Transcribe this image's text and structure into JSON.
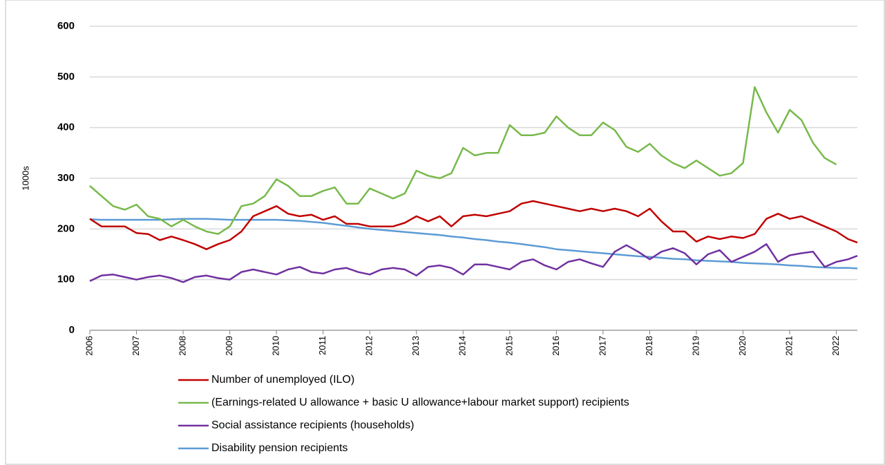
{
  "chart_data": {
    "type": "line",
    "y_label": "1000s",
    "x": [
      2006,
      2006.25,
      2006.5,
      2006.75,
      2007,
      2007.25,
      2007.5,
      2007.75,
      2008,
      2008.25,
      2008.5,
      2008.75,
      2009,
      2009.25,
      2009.5,
      2009.75,
      2010,
      2010.25,
      2010.5,
      2010.75,
      2011,
      2011.25,
      2011.5,
      2011.75,
      2012,
      2012.25,
      2012.5,
      2012.75,
      2013,
      2013.25,
      2013.5,
      2013.75,
      2014,
      2014.25,
      2014.5,
      2014.75,
      2015,
      2015.25,
      2015.5,
      2015.75,
      2016,
      2016.25,
      2016.5,
      2016.75,
      2017,
      2017.25,
      2017.5,
      2017.75,
      2018,
      2018.25,
      2018.5,
      2018.75,
      2019,
      2019.25,
      2019.5,
      2019.75,
      2020,
      2020.25,
      2020.5,
      2020.75,
      2021,
      2021.25,
      2021.5,
      2021.75,
      2022,
      2022.25,
      2022.45
    ],
    "series": [
      {
        "name": "Number of unemployed (ILO)",
        "color": "#c00000",
        "values": [
          220,
          205,
          205,
          205,
          192,
          190,
          178,
          185,
          178,
          170,
          160,
          170,
          178,
          195,
          225,
          235,
          245,
          230,
          225,
          228,
          218,
          225,
          210,
          210,
          205,
          205,
          205,
          212,
          225,
          215,
          225,
          205,
          225,
          228,
          225,
          230,
          235,
          250,
          255,
          250,
          245,
          240,
          235,
          240,
          235,
          240,
          235,
          225,
          240,
          215,
          195,
          195,
          175,
          185,
          180,
          185,
          182,
          190,
          220,
          230,
          220,
          225,
          215,
          205,
          195,
          180,
          173
        ]
      },
      {
        "name": "(Earnings-related U allowance + basic U allowance+labour market support) recipients",
        "color": "#77b94a",
        "values": [
          285,
          265,
          245,
          238,
          248,
          225,
          220,
          205,
          218,
          205,
          195,
          190,
          205,
          245,
          250,
          265,
          298,
          285,
          265,
          265,
          275,
          282,
          250,
          250,
          280,
          270,
          260,
          270,
          315,
          305,
          300,
          310,
          360,
          345,
          350,
          350,
          405,
          385,
          385,
          390,
          422,
          400,
          385,
          385,
          410,
          395,
          362,
          352,
          368,
          345,
          330,
          320,
          335,
          320,
          305,
          310,
          330,
          480,
          430,
          390,
          435,
          415,
          370,
          340,
          327,
          null,
          null
        ]
      },
      {
        "name": "Social assistance recipients (households)",
        "color": "#7030a0",
        "values": [
          97,
          108,
          110,
          105,
          100,
          105,
          108,
          103,
          95,
          105,
          108,
          103,
          100,
          115,
          120,
          115,
          110,
          120,
          125,
          115,
          112,
          120,
          123,
          115,
          110,
          120,
          123,
          120,
          108,
          125,
          128,
          123,
          110,
          130,
          130,
          125,
          120,
          135,
          140,
          128,
          120,
          135,
          140,
          132,
          125,
          155,
          168,
          155,
          140,
          155,
          162,
          152,
          130,
          150,
          158,
          135,
          145,
          155,
          170,
          135,
          148,
          152,
          155,
          125,
          135,
          140,
          147
        ]
      },
      {
        "name": "Disability pension recipients",
        "color": "#5b9bd5",
        "values": [
          219,
          218,
          218,
          218,
          218,
          218,
          218,
          219,
          220,
          220,
          220,
          219,
          218,
          218,
          218,
          218,
          218,
          217,
          216,
          214,
          212,
          209,
          206,
          203,
          200,
          198,
          196,
          194,
          192,
          190,
          188,
          185,
          183,
          180,
          178,
          175,
          173,
          170,
          167,
          164,
          160,
          158,
          156,
          154,
          152,
          150,
          148,
          146,
          145,
          143,
          141,
          140,
          138,
          137,
          136,
          135,
          133,
          132,
          131,
          130,
          128,
          127,
          125,
          124,
          123,
          123,
          122
        ]
      }
    ],
    "xlim": [
      2006,
      2022.45
    ],
    "xticks": [
      2006,
      2007,
      2008,
      2009,
      2010,
      2011,
      2012,
      2013,
      2014,
      2015,
      2016,
      2017,
      2018,
      2019,
      2020,
      2021,
      2022
    ],
    "ylim": [
      0,
      600
    ],
    "yticks": [
      0,
      100,
      200,
      300,
      400,
      500,
      600
    ],
    "grid": true
  }
}
